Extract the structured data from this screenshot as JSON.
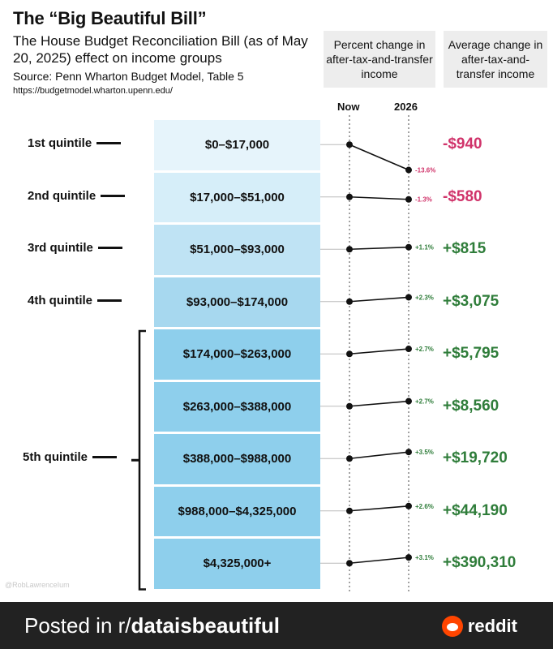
{
  "header": {
    "title": "The “Big Beautiful Bill”",
    "subtitle": "The House Budget Reconciliation Bill (as of May 20, 2025) effect on income groups",
    "source": "Source: Penn Wharton Budget Model, Table 5",
    "url": "https://budgetmodel.wharton.upenn.edu/",
    "col_pct": "Percent change in after-tax-and-transfer income",
    "col_avg": "Average change in after-tax-and-transfer income",
    "axis_now": "Now",
    "axis_2026": "2026"
  },
  "quintile_labels": [
    "1st quintile",
    "2nd quintile",
    "3rd quintile",
    "4th quintile",
    "5th quintile"
  ],
  "chart_data": {
    "type": "slope",
    "x": [
      "Now",
      "2026"
    ],
    "rows": [
      {
        "bracket": "$0–$17,000",
        "pct_change": -13.6,
        "pct_label": "-13.6%",
        "avg_change": "-$940"
      },
      {
        "bracket": "$17,000–$51,000",
        "pct_change": -1.3,
        "pct_label": "-1.3%",
        "avg_change": "-$580"
      },
      {
        "bracket": "$51,000–$93,000",
        "pct_change": 1.1,
        "pct_label": "+1.1%",
        "avg_change": "+$815"
      },
      {
        "bracket": "$93,000–$174,000",
        "pct_change": 2.3,
        "pct_label": "+2.3%",
        "avg_change": "+$3,075"
      },
      {
        "bracket": "$174,000–$263,000",
        "pct_change": 2.7,
        "pct_label": "+2.7%",
        "avg_change": "+$5,795"
      },
      {
        "bracket": "$263,000–$388,000",
        "pct_change": 2.7,
        "pct_label": "+2.7%",
        "avg_change": "+$8,560"
      },
      {
        "bracket": "$388,000–$988,000",
        "pct_change": 3.5,
        "pct_label": "+3.5%",
        "avg_change": "+$19,720"
      },
      {
        "bracket": "$988,000–$4,325,000",
        "pct_change": 2.6,
        "pct_label": "+2.6%",
        "avg_change": "+$44,190"
      },
      {
        "bracket": "$4,325,000+",
        "pct_change": 3.1,
        "pct_label": "+3.1%",
        "avg_change": "+$390,310"
      }
    ],
    "colors": {
      "positive": "#2f7d3a",
      "negative": "#d0336a"
    }
  },
  "watermark": "@RobLawrenceIum",
  "footer": {
    "posted_prefix": "Posted in r/",
    "subreddit": "dataisbeautiful",
    "brand": "reddit"
  }
}
